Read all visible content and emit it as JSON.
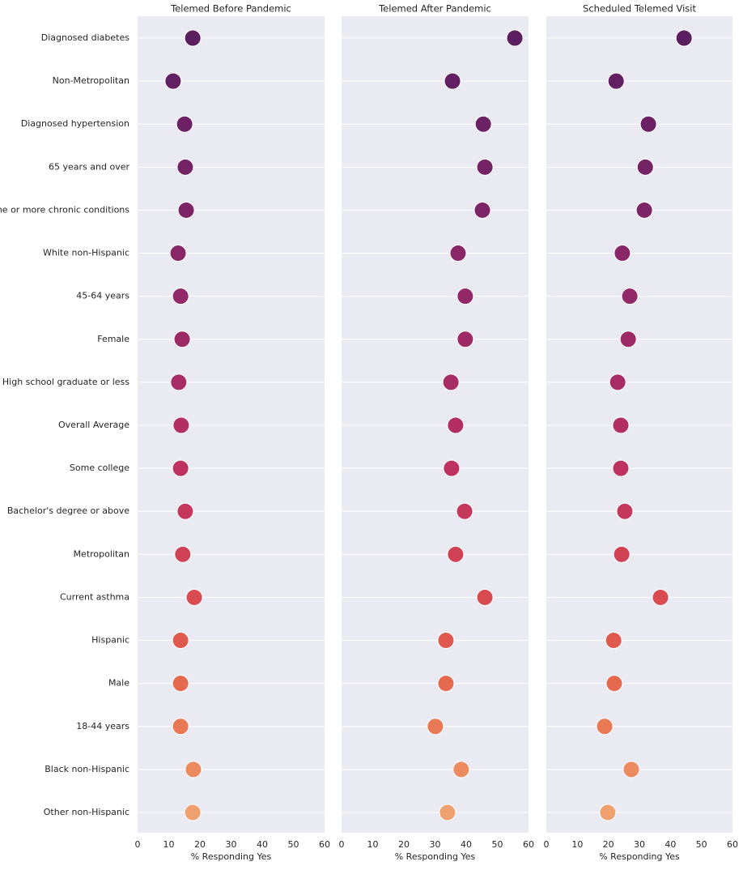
{
  "chart_data": {
    "type": "dot",
    "categories": [
      "Diagnosed diabetes",
      "Non-Metropolitan",
      "Diagnosed hypertension",
      "65 years and over",
      "One or more chronic conditions",
      "White non-Hispanic",
      "45-64 years",
      "Female",
      "High school graduate or less",
      "Overall Average",
      "Some college",
      "Bachelor's degree or above",
      "Metropolitan",
      "Current asthma",
      "Hispanic",
      "Male",
      "18-44 years",
      "Black non-Hispanic",
      "Other non-Hispanic"
    ],
    "colors": [
      "#5b1e5f",
      "#621f61",
      "#6b2163",
      "#742365",
      "#7d2466",
      "#882667",
      "#922867",
      "#9d2a67",
      "#a72c66",
      "#b22e63",
      "#bd3260",
      "#c6385b",
      "#d04156",
      "#d84c51",
      "#e0594e",
      "#e5694f",
      "#e97955",
      "#ec8a60",
      "#eea06f"
    ],
    "series": [
      {
        "name": "Telemed Before Pandemic",
        "values": [
          17.7,
          11.4,
          15.1,
          15.3,
          15.6,
          13.0,
          13.8,
          14.3,
          13.2,
          14.0,
          13.8,
          15.3,
          14.5,
          18.2,
          13.8,
          13.8,
          13.8,
          17.9,
          17.7
        ]
      },
      {
        "name": "Telemed After Pandemic",
        "values": [
          55.6,
          35.6,
          45.5,
          46.0,
          45.2,
          37.4,
          39.7,
          39.7,
          35.1,
          36.6,
          35.3,
          39.5,
          36.6,
          46.0,
          33.5,
          33.5,
          30.1,
          38.4,
          34.0
        ]
      },
      {
        "name": "Scheduled Telemed Visit",
        "values": [
          44.4,
          22.5,
          32.9,
          31.9,
          31.6,
          24.5,
          26.9,
          26.4,
          23.0,
          24.0,
          24.0,
          25.3,
          24.3,
          36.8,
          21.7,
          21.9,
          18.8,
          27.4,
          19.8
        ]
      }
    ],
    "xlabel": "% Responding Yes",
    "xlim": [
      0,
      60
    ],
    "xticks": [
      0,
      10,
      20,
      30,
      40,
      50,
      60
    ],
    "grid": true
  }
}
